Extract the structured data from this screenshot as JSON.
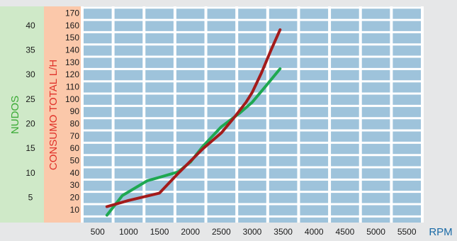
{
  "chart_data": {
    "type": "line",
    "title": "",
    "xlabel": "RPM",
    "y_left_label": "NUDOS",
    "y_right_label": "CONSUMO TOTAL L/H",
    "x_ticks": [
      500,
      1000,
      1500,
      2000,
      2500,
      3000,
      3500,
      4000,
      4500,
      5000,
      5500
    ],
    "xlim": [
      250,
      5750
    ],
    "knots_ticks": [
      5,
      10,
      15,
      20,
      25,
      30,
      35,
      40
    ],
    "knots_lim": [
      0,
      44
    ],
    "consumption_ticks": [
      10,
      20,
      30,
      40,
      50,
      60,
      70,
      80,
      90,
      100,
      110,
      120,
      130,
      140,
      150,
      160,
      170
    ],
    "consumption_lim": [
      0,
      176
    ],
    "grid": true,
    "colors": {
      "background": "#e6e7e8",
      "grid_cell": "#9ec3db",
      "grid_line": "#ffffff",
      "knots_band": "#cfe9c8",
      "consumption_band": "#fbc8aa",
      "knots_axis_text": "#3aaa35",
      "consumption_axis_text": "#e0322a",
      "rpm_text": "#1a6aa6"
    },
    "series": [
      {
        "axis": "knots",
        "color": "#1ea851",
        "x": [
          650,
          900,
          1100,
          1300,
          1500,
          1800,
          2000,
          2200,
          2500,
          2800,
          3000,
          3200,
          3450
        ],
        "y": [
          1.5,
          5.5,
          7.0,
          8.5,
          9.2,
          10.3,
          12.3,
          15.5,
          19.5,
          22.3,
          24.5,
          27.5,
          31.3
        ]
      },
      {
        "axis": "consumption",
        "color": "#a31b1b",
        "x": [
          650,
          1000,
          1500,
          1800,
          2000,
          2200,
          2500,
          2700,
          2900,
          3000,
          3150,
          3300,
          3450
        ],
        "y": [
          13,
          18,
          24,
          40,
          50,
          60,
          73,
          85,
          98,
          106,
          122,
          140,
          157
        ]
      }
    ]
  }
}
